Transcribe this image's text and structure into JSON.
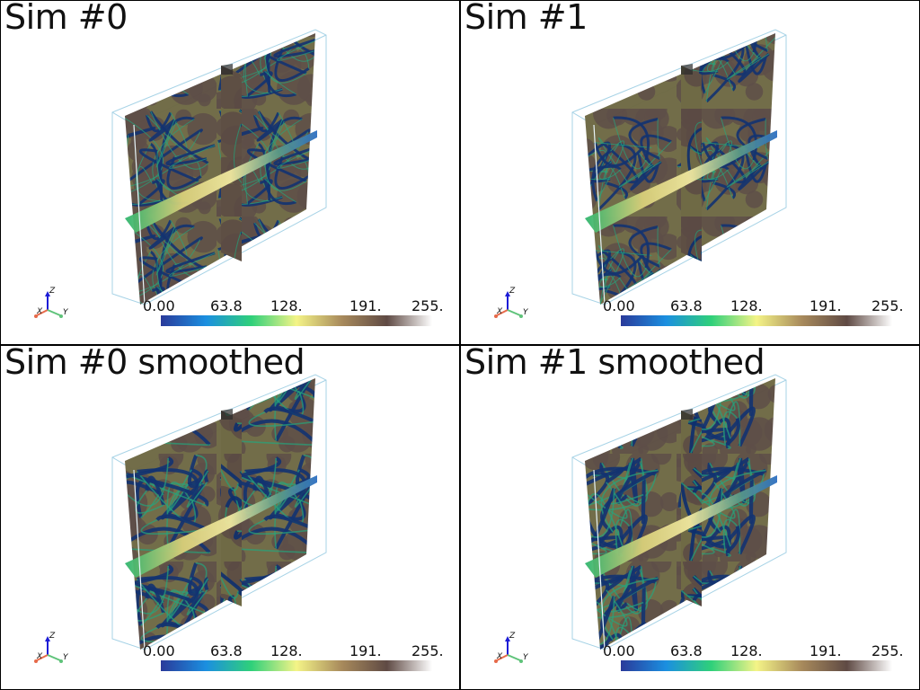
{
  "panels": [
    {
      "title": "Sim #0"
    },
    {
      "title": "Sim #1"
    },
    {
      "title": "Sim #0 smoothed"
    },
    {
      "title": "Sim #1 smoothed"
    }
  ],
  "colorbar": {
    "ticks": [
      "0.00",
      "63.8",
      "128.",
      "191.",
      "255."
    ],
    "colors": [
      "#2a3a9a",
      "#1b8fe0",
      "#2fd07a",
      "#f4f487",
      "#a88a5c",
      "#5f4a44",
      "#ffffff"
    ]
  },
  "axes": {
    "x": "X",
    "y": "Y",
    "z": "Z"
  }
}
